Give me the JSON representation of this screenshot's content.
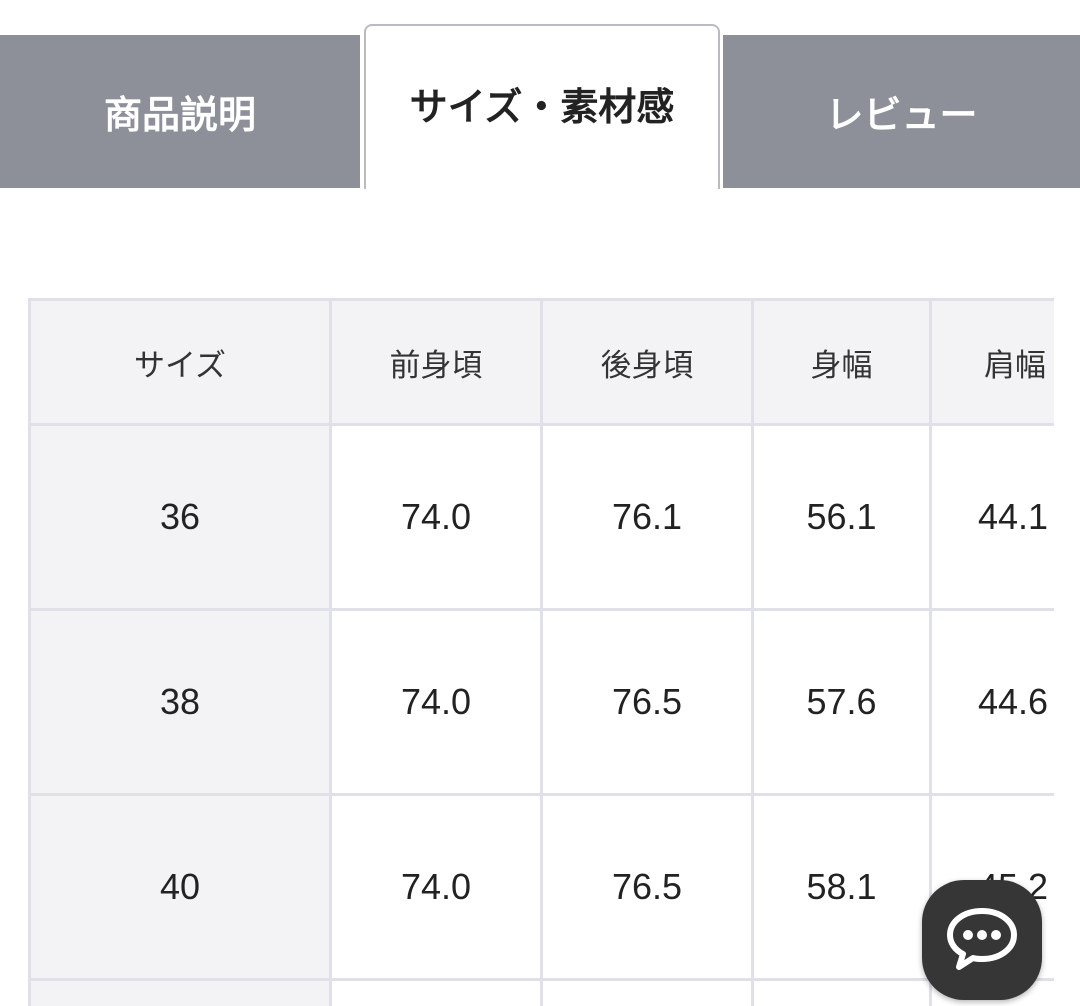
{
  "tabs": [
    {
      "label": "商品説明",
      "active": false
    },
    {
      "label": "サイズ・素材感",
      "active": true
    },
    {
      "label": "レビュー",
      "active": false
    }
  ],
  "table": {
    "headers": [
      "サイズ",
      "前身頃",
      "後身頃",
      "身幅",
      "肩幅"
    ],
    "rows": [
      [
        "36",
        "74.0",
        "76.1",
        "56.1",
        "44.1"
      ],
      [
        "38",
        "74.0",
        "76.5",
        "57.6",
        "44.6"
      ],
      [
        "40",
        "74.0",
        "76.5",
        "58.1",
        "45.2"
      ],
      [
        "",
        "",
        "",
        "",
        ""
      ]
    ]
  },
  "chat_button": {
    "icon": "chat-bubble-icon",
    "color": "#363636"
  },
  "colors": {
    "inactive_tab": "#8d9098",
    "border": "#dfe0e8",
    "header_bg": "#f3f3f5"
  }
}
